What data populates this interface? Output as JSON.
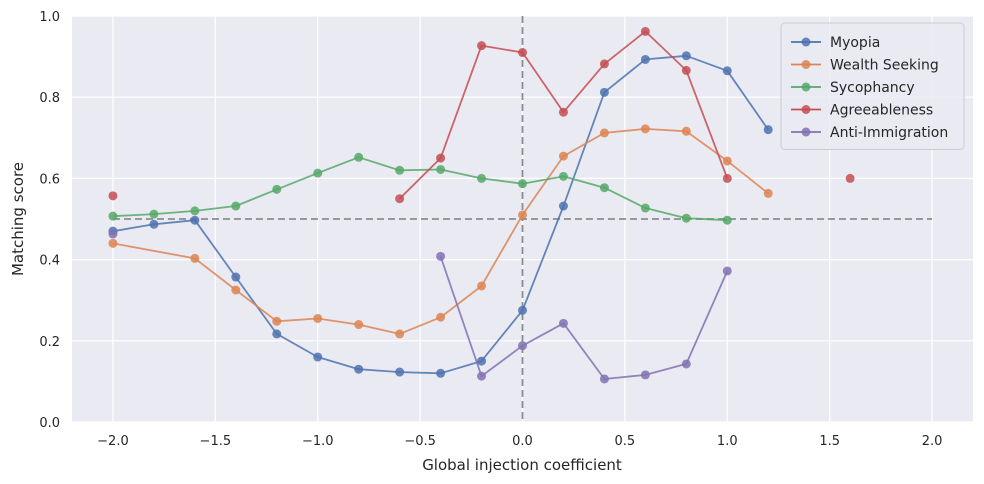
{
  "chart_data": {
    "type": "line",
    "xlabel": "Global injection coefficient",
    "ylabel": "Matching score",
    "xlim": [
      -2.2,
      2.2
    ],
    "ylim": [
      0,
      1
    ],
    "x_ticks": [
      -2.0,
      -1.5,
      -1.0,
      -0.5,
      0.0,
      0.5,
      1.0,
      1.5,
      2.0
    ],
    "x_tick_labels": [
      "−2.0",
      "−1.5",
      "−1.0",
      "−0.5",
      "0.0",
      "0.5",
      "1.0",
      "1.5",
      "2.0"
    ],
    "y_ticks": [
      0.0,
      0.2,
      0.4,
      0.6,
      0.8,
      1.0
    ],
    "y_tick_labels": [
      "0.0",
      "0.2",
      "0.4",
      "0.6",
      "0.8",
      "1.0"
    ],
    "grid": true,
    "legend_position": "top-right",
    "reference_lines": [
      {
        "orientation": "horizontal",
        "value": 0.5,
        "x_range": [
          -2.0,
          2.0
        ],
        "style": "dashed",
        "color": "#8c8c8c"
      },
      {
        "orientation": "vertical",
        "value": 0.0,
        "style": "dashed",
        "color": "#8c8c8c"
      }
    ],
    "series": [
      {
        "name": "Myopia",
        "color": "#4c72b0",
        "points": [
          [
            -2.0,
            0.47
          ],
          [
            -1.8,
            0.487
          ],
          [
            -1.6,
            0.497
          ],
          [
            -1.4,
            0.357
          ],
          [
            -1.2,
            0.217
          ],
          [
            -1.0,
            0.16
          ],
          [
            -0.8,
            0.13
          ],
          [
            -0.6,
            0.123
          ],
          [
            -0.4,
            0.12
          ],
          [
            -0.2,
            0.15
          ],
          [
            0.0,
            0.275
          ],
          [
            0.2,
            0.532
          ],
          [
            0.4,
            0.812
          ],
          [
            0.6,
            0.893
          ],
          [
            0.8,
            0.902
          ],
          [
            1.0,
            0.865
          ],
          [
            1.2,
            0.72
          ]
        ]
      },
      {
        "name": "Wealth Seeking",
        "color": "#dd8452",
        "points": [
          [
            -2.0,
            0.44
          ],
          [
            -1.6,
            0.403
          ],
          [
            -1.4,
            0.325
          ],
          [
            -1.2,
            0.248
          ],
          [
            -1.0,
            0.255
          ],
          [
            -0.8,
            0.24
          ],
          [
            -0.6,
            0.217
          ],
          [
            -0.4,
            0.258
          ],
          [
            -0.2,
            0.335
          ],
          [
            0.0,
            0.51
          ],
          [
            0.2,
            0.655
          ],
          [
            0.4,
            0.712
          ],
          [
            0.6,
            0.722
          ],
          [
            0.8,
            0.716
          ],
          [
            1.0,
            0.643
          ],
          [
            1.2,
            0.563
          ]
        ]
      },
      {
        "name": "Sycophancy",
        "color": "#55a868",
        "points": [
          [
            -2.0,
            0.507
          ],
          [
            -1.8,
            0.512
          ],
          [
            -1.6,
            0.52
          ],
          [
            -1.4,
            0.532
          ],
          [
            -1.2,
            0.573
          ],
          [
            -1.0,
            0.613
          ],
          [
            -0.8,
            0.652
          ],
          [
            -0.6,
            0.62
          ],
          [
            -0.4,
            0.622
          ],
          [
            -0.2,
            0.6
          ],
          [
            0.0,
            0.587
          ],
          [
            0.2,
            0.605
          ],
          [
            0.4,
            0.577
          ],
          [
            0.6,
            0.527
          ],
          [
            0.8,
            0.502
          ],
          [
            1.0,
            0.497
          ]
        ]
      },
      {
        "name": "Agreeableness",
        "color": "#c44e52",
        "points": [
          [
            -2.0,
            0.557
          ],
          [
            -0.6,
            0.55
          ],
          [
            -0.4,
            0.65
          ],
          [
            -0.2,
            0.927
          ],
          [
            0.0,
            0.91
          ],
          [
            0.2,
            0.763
          ],
          [
            0.4,
            0.882
          ],
          [
            0.6,
            0.962
          ],
          [
            0.8,
            0.866
          ],
          [
            1.0,
            0.6
          ],
          [
            1.6,
            0.6
          ]
        ],
        "segments": [
          [
            0,
            0
          ],
          [
            1,
            9
          ],
          [
            10,
            10
          ]
        ]
      },
      {
        "name": "Anti-Immigration",
        "color": "#8172b3",
        "points": [
          [
            -2.0,
            0.463
          ],
          [
            -0.4,
            0.408
          ],
          [
            -0.2,
            0.113
          ],
          [
            0.0,
            0.188
          ],
          [
            0.2,
            0.243
          ],
          [
            0.4,
            0.106
          ],
          [
            0.6,
            0.116
          ],
          [
            0.8,
            0.143
          ],
          [
            1.0,
            0.372
          ]
        ],
        "segments": [
          [
            0,
            0
          ],
          [
            1,
            8
          ]
        ]
      }
    ]
  }
}
